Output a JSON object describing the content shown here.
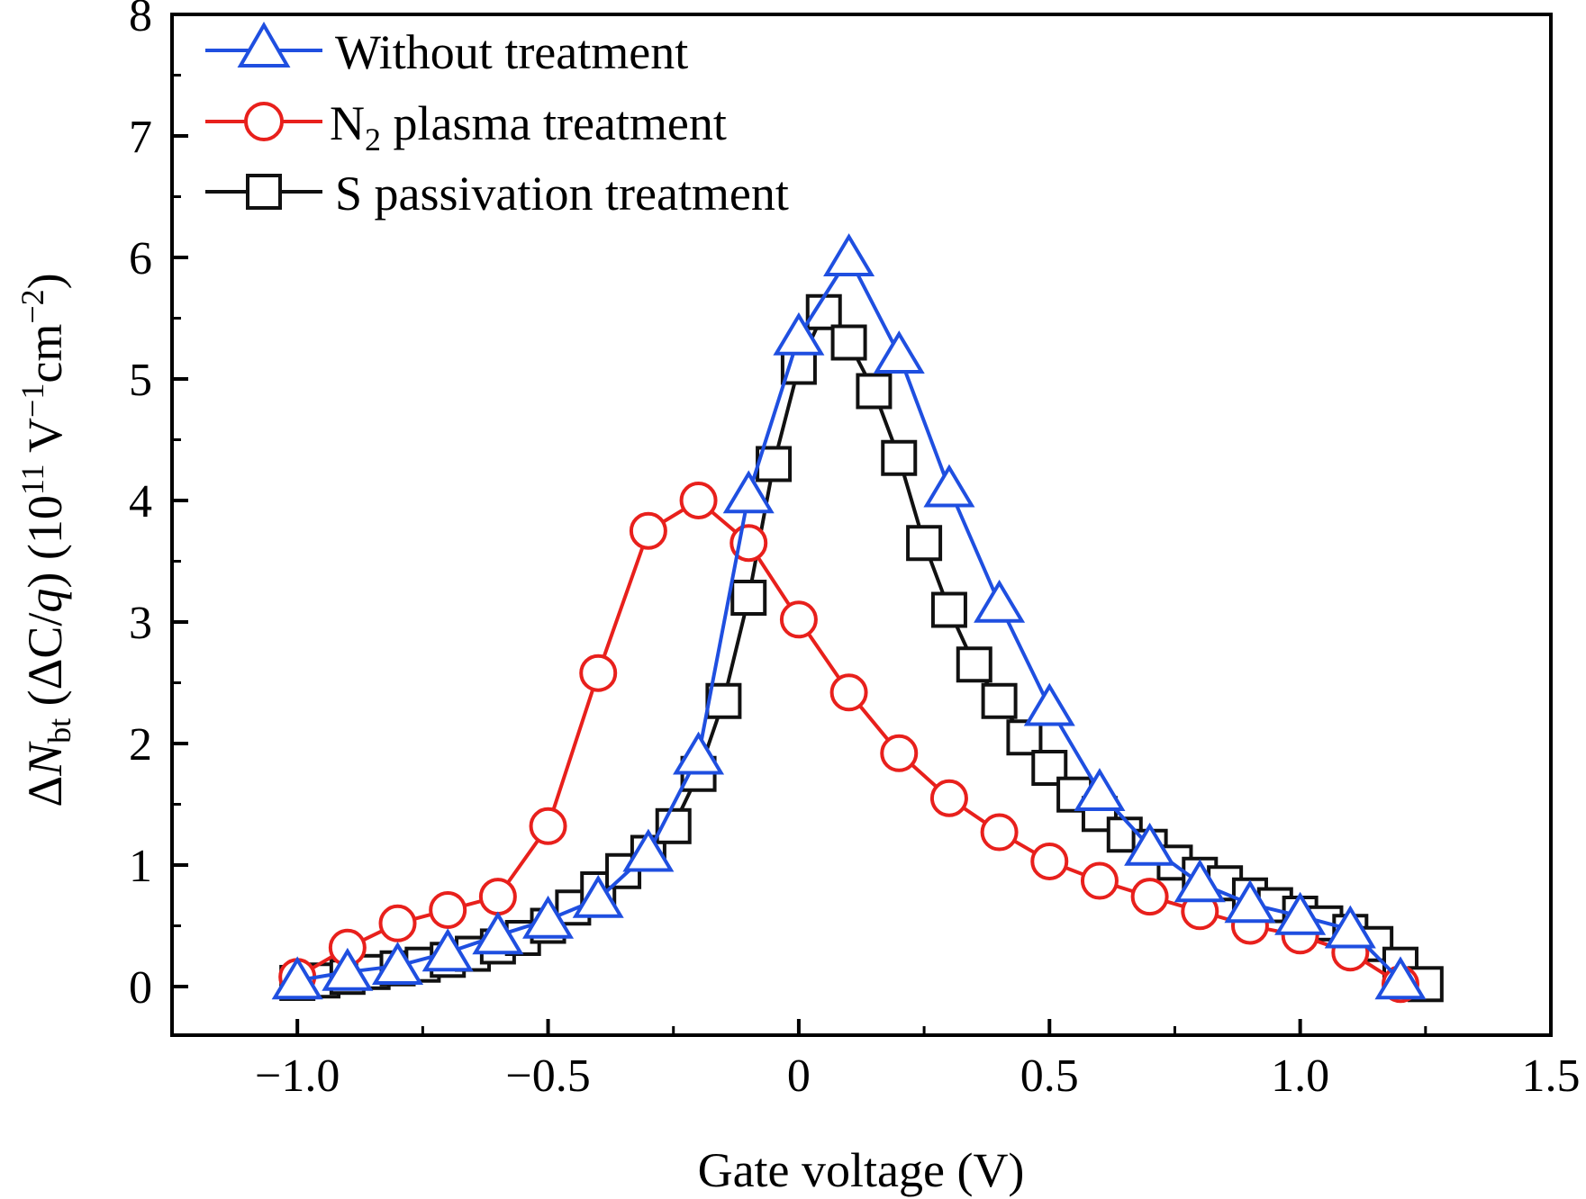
{
  "chart_data": {
    "type": "line",
    "xlabel": "Gate voltage (V)",
    "ylabel": {
      "prefix": "Δ",
      "symbol": "N",
      "sub": "bt",
      "paren_open": " (ΔC/",
      "q": "q",
      "paren_close": ") (10",
      "exp11": "11",
      "unit": " V",
      "exp_m1": "−1",
      "cm": "cm",
      "exp_m2": "−2",
      "close": ")"
    },
    "xlim": [
      -1.25,
      1.5
    ],
    "ylim": [
      -0.4,
      8
    ],
    "xticks": [
      -1.0,
      -0.5,
      0,
      0.5,
      1.0,
      1.5
    ],
    "xtick_labels": [
      "−1.0",
      "−0.5",
      "0",
      "0.5",
      "1.0",
      "1.5"
    ],
    "yticks": [
      0,
      1,
      2,
      3,
      4,
      5,
      6,
      7,
      8
    ],
    "ytick_labels": [
      "0",
      "1",
      "2",
      "3",
      "4",
      "5",
      "6",
      "7",
      "8"
    ],
    "grid": false,
    "legend_position": "top-left",
    "series": [
      {
        "name": "Without treatment",
        "color": "#1f4fe0",
        "marker": "triangle",
        "x": [
          -1.0,
          -0.9,
          -0.8,
          -0.7,
          -0.6,
          -0.5,
          -0.4,
          -0.3,
          -0.2,
          -0.1,
          0.0,
          0.1,
          0.2,
          0.3,
          0.4,
          0.5,
          0.6,
          0.7,
          0.8,
          0.9,
          1.0,
          1.1,
          1.2
        ],
        "y": [
          0.05,
          0.12,
          0.17,
          0.28,
          0.42,
          0.55,
          0.72,
          1.1,
          1.9,
          4.05,
          5.35,
          6.0,
          5.2,
          4.1,
          3.15,
          2.3,
          1.6,
          1.15,
          0.85,
          0.68,
          0.58,
          0.47,
          0.05
        ]
      },
      {
        "name": "N",
        "name_sub": "2",
        "name_rest": " plasma treatment",
        "color": "#e8201c",
        "marker": "circle",
        "x": [
          -1.0,
          -0.9,
          -0.8,
          -0.7,
          -0.6,
          -0.5,
          -0.4,
          -0.3,
          -0.2,
          -0.1,
          0.0,
          0.1,
          0.2,
          0.3,
          0.4,
          0.5,
          0.6,
          0.7,
          0.8,
          0.9,
          1.0,
          1.1,
          1.2
        ],
        "y": [
          0.08,
          0.32,
          0.52,
          0.63,
          0.74,
          1.32,
          2.58,
          3.75,
          4.0,
          3.65,
          3.02,
          2.42,
          1.92,
          1.55,
          1.27,
          1.03,
          0.87,
          0.74,
          0.62,
          0.5,
          0.42,
          0.28,
          0.02
        ]
      },
      {
        "name": "S passivation treatment",
        "color": "#111111",
        "marker": "square",
        "x": [
          -1.0,
          -0.95,
          -0.9,
          -0.85,
          -0.8,
          -0.75,
          -0.7,
          -0.65,
          -0.6,
          -0.55,
          -0.5,
          -0.45,
          -0.4,
          -0.35,
          -0.3,
          -0.25,
          -0.2,
          -0.15,
          -0.1,
          -0.05,
          0.0,
          0.05,
          0.1,
          0.15,
          0.2,
          0.25,
          0.3,
          0.35,
          0.4,
          0.45,
          0.5,
          0.55,
          0.6,
          0.65,
          0.7,
          0.75,
          0.8,
          0.85,
          0.9,
          0.95,
          1.0,
          1.05,
          1.1,
          1.15,
          1.2,
          1.25
        ],
        "y": [
          0.03,
          0.05,
          0.08,
          0.12,
          0.15,
          0.18,
          0.22,
          0.27,
          0.33,
          0.4,
          0.5,
          0.65,
          0.8,
          0.95,
          1.1,
          1.32,
          1.75,
          2.35,
          3.2,
          4.3,
          5.1,
          5.55,
          5.3,
          4.9,
          4.35,
          3.65,
          3.1,
          2.65,
          2.35,
          2.05,
          1.8,
          1.58,
          1.42,
          1.25,
          1.15,
          1.02,
          0.92,
          0.85,
          0.75,
          0.67,
          0.6,
          0.52,
          0.45,
          0.35,
          0.18,
          0.02
        ]
      }
    ]
  }
}
